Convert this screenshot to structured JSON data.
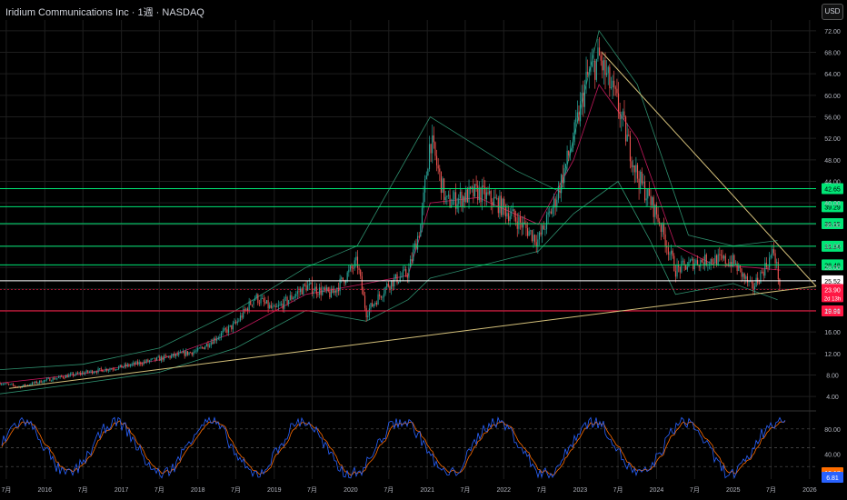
{
  "header": {
    "title": "Iridium Communications Inc · 1週 · NASDAQ",
    "currency": "USD"
  },
  "colors": {
    "background": "#000000",
    "grid": "#1e1e1e",
    "green": "#00e676",
    "red": "#ff1744",
    "white": "#ffffff",
    "trend": "#d4c07a",
    "up_candle": "#26a69a",
    "down_candle": "#ef5350",
    "band": "#2e8f6e",
    "ma": "#c2185b",
    "stoch_k": "#2962ff",
    "stoch_d": "#ff6d00"
  },
  "chart_data": [
    {
      "type": "candlestick",
      "title": "Iridium Communications Inc · 1週 · NASDAQ",
      "ylim": [
        2,
        74
      ],
      "y_ticks": [
        4,
        8,
        12,
        16,
        20,
        24,
        28,
        32,
        36,
        40,
        44,
        48,
        52,
        56,
        60,
        64,
        68,
        72
      ],
      "y_tick_labels": [
        "4.00",
        "8.00",
        "12.00",
        "16.00",
        "20.00",
        "24.00",
        "28.00",
        "32.00",
        "36.00",
        "40.00",
        "44.00",
        "48.00",
        "52.00",
        "56.00",
        "60.00",
        "64.00",
        "68.00",
        "72.00"
      ],
      "x_range": [
        "2015-06-01",
        "2026-02-01"
      ],
      "x_ticks": [
        {
          "date": "2015-07-01",
          "label": "7月"
        },
        {
          "date": "2016-01-01",
          "label": "2016"
        },
        {
          "date": "2016-07-01",
          "label": "7月"
        },
        {
          "date": "2017-01-01",
          "label": "2017"
        },
        {
          "date": "2017-07-01",
          "label": "7月"
        },
        {
          "date": "2018-01-01",
          "label": "2018"
        },
        {
          "date": "2018-07-01",
          "label": "7月"
        },
        {
          "date": "2019-01-01",
          "label": "2019"
        },
        {
          "date": "2019-07-01",
          "label": "7月"
        },
        {
          "date": "2020-01-01",
          "label": "2020"
        },
        {
          "date": "2020-07-01",
          "label": "7月"
        },
        {
          "date": "2021-01-01",
          "label": "2021"
        },
        {
          "date": "2021-07-01",
          "label": "7月"
        },
        {
          "date": "2022-01-01",
          "label": "2022"
        },
        {
          "date": "2022-07-01",
          "label": "7月"
        },
        {
          "date": "2023-01-01",
          "label": "2023"
        },
        {
          "date": "2023-07-01",
          "label": "7月"
        },
        {
          "date": "2024-01-01",
          "label": "2024"
        },
        {
          "date": "2024-07-01",
          "label": "7月"
        },
        {
          "date": "2025-01-01",
          "label": "2025"
        },
        {
          "date": "2025-07-01",
          "label": "7月"
        },
        {
          "date": "2026-01-01",
          "label": "2026"
        }
      ],
      "price_path": [
        [
          "2015-06-01",
          6.5
        ],
        [
          "2015-09-01",
          5.8
        ],
        [
          "2016-01-01",
          7.0
        ],
        [
          "2016-07-01",
          8.4
        ],
        [
          "2017-01-01",
          9.5
        ],
        [
          "2017-07-01",
          11.0
        ],
        [
          "2018-01-01",
          12.5
        ],
        [
          "2018-07-01",
          17.5
        ],
        [
          "2018-10-01",
          22.5
        ],
        [
          "2019-01-01",
          20.0
        ],
        [
          "2019-06-01",
          24.5
        ],
        [
          "2019-10-01",
          23.0
        ],
        [
          "2020-02-01",
          29.0
        ],
        [
          "2020-03-15",
          19.5
        ],
        [
          "2020-07-01",
          25.0
        ],
        [
          "2020-10-01",
          27.0
        ],
        [
          "2020-12-01",
          36.0
        ],
        [
          "2021-01-15",
          52.0
        ],
        [
          "2021-04-01",
          40.0
        ],
        [
          "2021-09-01",
          42.0
        ],
        [
          "2021-12-01",
          40.0
        ],
        [
          "2022-03-01",
          37.0
        ],
        [
          "2022-06-15",
          33.0
        ],
        [
          "2022-09-01",
          40.0
        ],
        [
          "2022-12-01",
          52.0
        ],
        [
          "2023-02-01",
          63.0
        ],
        [
          "2023-04-01",
          67.0
        ],
        [
          "2023-07-01",
          58.0
        ],
        [
          "2023-10-01",
          45.0
        ],
        [
          "2024-01-01",
          38.0
        ],
        [
          "2024-04-01",
          27.5
        ],
        [
          "2024-07-01",
          29.0
        ],
        [
          "2024-10-01",
          29.5
        ],
        [
          "2025-01-01",
          29.0
        ],
        [
          "2025-04-01",
          24.0
        ],
        [
          "2025-06-01",
          28.0
        ],
        [
          "2025-07-15",
          31.0
        ],
        [
          "2025-08-15",
          23.9
        ]
      ],
      "upper_band_path": [
        [
          "2015-06-01",
          9.0
        ],
        [
          "2016-07-01",
          10.0
        ],
        [
          "2017-07-01",
          13.0
        ],
        [
          "2018-07-01",
          20.0
        ],
        [
          "2019-06-01",
          28.0
        ],
        [
          "2020-02-01",
          32.0
        ],
        [
          "2021-01-15",
          56.0
        ],
        [
          "2022-03-01",
          46.0
        ],
        [
          "2022-10-01",
          42.0
        ],
        [
          "2023-04-01",
          72.0
        ],
        [
          "2023-10-01",
          62.0
        ],
        [
          "2024-06-01",
          34.0
        ],
        [
          "2025-01-01",
          32.0
        ],
        [
          "2025-08-01",
          33.0
        ]
      ],
      "lower_band_path": [
        [
          "2015-06-01",
          4.5
        ],
        [
          "2016-07-01",
          6.5
        ],
        [
          "2017-07-01",
          8.5
        ],
        [
          "2018-07-01",
          13.0
        ],
        [
          "2019-06-01",
          20.0
        ],
        [
          "2020-03-15",
          18.0
        ],
        [
          "2020-10-01",
          22.0
        ],
        [
          "2021-01-15",
          26.0
        ],
        [
          "2022-06-15",
          31.0
        ],
        [
          "2022-12-01",
          38.0
        ],
        [
          "2023-07-01",
          44.0
        ],
        [
          "2023-12-01",
          33.0
        ],
        [
          "2024-04-01",
          23.0
        ],
        [
          "2025-01-01",
          25.0
        ],
        [
          "2025-08-01",
          22.0
        ]
      ],
      "ma_path": [
        [
          "2015-06-01",
          6.5
        ],
        [
          "2016-07-01",
          8.2
        ],
        [
          "2017-07-01",
          10.8
        ],
        [
          "2018-07-01",
          16.0
        ],
        [
          "2019-06-01",
          23.0
        ],
        [
          "2020-03-15",
          25.0
        ],
        [
          "2020-10-01",
          26.5
        ],
        [
          "2021-01-15",
          40.0
        ],
        [
          "2021-09-01",
          41.0
        ],
        [
          "2022-06-15",
          36.0
        ],
        [
          "2022-12-01",
          48.0
        ],
        [
          "2023-04-01",
          62.0
        ],
        [
          "2023-10-01",
          52.0
        ],
        [
          "2024-04-01",
          32.0
        ],
        [
          "2024-10-01",
          28.5
        ],
        [
          "2025-04-01",
          28.0
        ],
        [
          "2025-08-15",
          27.5
        ]
      ],
      "horizontal_lines": [
        {
          "value": 42.65,
          "label": "42.65",
          "color": "green"
        },
        {
          "value": 39.29,
          "label": "39.29",
          "color": "green"
        },
        {
          "value": 36.15,
          "label": "36.15",
          "color": "green"
        },
        {
          "value": 31.94,
          "label": "31.94",
          "color": "green"
        },
        {
          "value": 28.48,
          "label": "28.48",
          "color": "green"
        },
        {
          "value": 25.52,
          "label": "25.52",
          "color": "white"
        },
        {
          "value": 19.91,
          "label": "19.91",
          "color": "red"
        }
      ],
      "trendlines": [
        {
          "from": [
            "2015-07-15",
            5.5
          ],
          "to": [
            "2026-02-01",
            24.5
          ]
        },
        {
          "from": [
            "2023-04-15",
            68.0
          ],
          "to": [
            "2026-02-01",
            24.5
          ]
        }
      ],
      "last_price": {
        "value": 23.9,
        "label": "23.90",
        "countdown": "2d 13h"
      }
    },
    {
      "type": "line",
      "name": "Stochastic",
      "ylim": [
        0,
        100
      ],
      "y_ticks": [
        40,
        80
      ],
      "y_tick_labels": [
        "40.00",
        "80.00"
      ],
      "reference_lines": [
        20,
        50,
        80
      ],
      "k_last": {
        "value": 6.81,
        "label": "6.81"
      },
      "d_last": {
        "value": 10.17,
        "label": "10.17"
      }
    }
  ]
}
